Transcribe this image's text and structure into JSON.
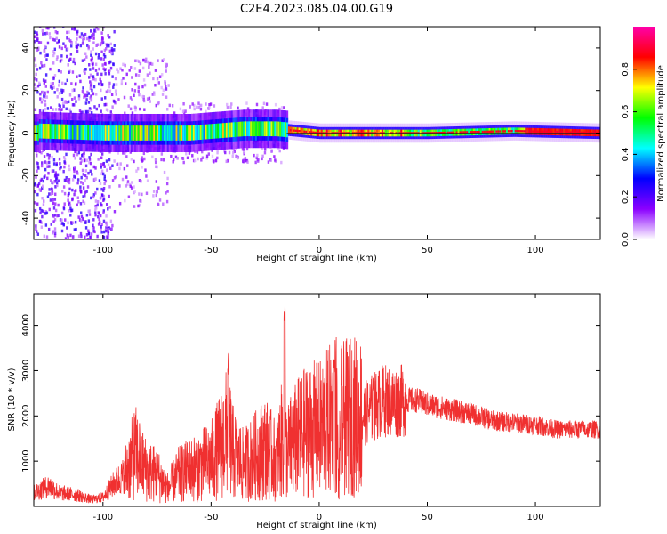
{
  "chart_data": [
    {
      "type": "heatmap",
      "title": "C2E4.2023.085.04.00.G19",
      "xlabel": "Height of straight line (km)",
      "ylabel": "Frequency (Hz)",
      "xlim": [
        -132,
        130
      ],
      "ylim": [
        -50,
        50
      ],
      "xticks": [
        -100,
        -50,
        0,
        50,
        100
      ],
      "yticks": [
        -40,
        -20,
        0,
        20,
        40
      ],
      "colorbar": {
        "label": "Normalized spectral amplitude",
        "range": [
          0.0,
          1.0
        ],
        "ticks": [
          0.0,
          0.2,
          0.4,
          0.6,
          0.8
        ],
        "tick_labels": [
          "0.0",
          "0.2",
          "0.4",
          "0.6",
          "0.8"
        ],
        "colormap": [
          "#ffffff",
          "#8b00ff",
          "#0000ff",
          "#00ffff",
          "#00ff00",
          "#ffff00",
          "#ff0000",
          "#ff00aa"
        ]
      },
      "features": {
        "band_center_hz": [
          {
            "x": -130,
            "f": 1
          },
          {
            "x": -100,
            "f": 0
          },
          {
            "x": -60,
            "f": 0
          },
          {
            "x": -35,
            "f": 2
          },
          {
            "x": -20,
            "f": 2
          },
          {
            "x": 0,
            "f": 0
          },
          {
            "x": 50,
            "f": 0
          },
          {
            "x": 90,
            "f": 1
          },
          {
            "x": 130,
            "f": 0
          }
        ]
      },
      "grid": false
    },
    {
      "type": "line",
      "xlabel": "Height of straight line (km)",
      "ylabel": "SNR (10 * v/v)",
      "xlim": [
        -132,
        130
      ],
      "ylim": [
        0,
        4700
      ],
      "xticks": [
        -100,
        -50,
        0,
        50,
        100
      ],
      "yticks": [
        1000,
        2000,
        3000,
        4000
      ],
      "color": "#f03030",
      "series": [
        {
          "x": [
            -132,
            -125,
            -120,
            -112,
            -105,
            -100,
            -95,
            -90,
            -85,
            -80,
            -75,
            -70,
            -65,
            -60,
            -55,
            -50,
            -45,
            -42,
            -40,
            -35,
            -30,
            -25,
            -20,
            -17,
            -15,
            -10,
            -5,
            0,
            5,
            8,
            9,
            10,
            15,
            20,
            25,
            30,
            35,
            40,
            45,
            50,
            60,
            70,
            80,
            90,
            100,
            110,
            120,
            130
          ],
          "y": [
            300,
            450,
            300,
            250,
            150,
            200,
            500,
            700,
            1200,
            800,
            700,
            400,
            700,
            800,
            900,
            1000,
            1400,
            1700,
            1200,
            900,
            1100,
            1300,
            1000,
            1500,
            1200,
            1500,
            1700,
            1700,
            1900,
            2100,
            400,
            1900,
            2000,
            2000,
            2200,
            2350,
            2300,
            2350,
            2350,
            2250,
            2150,
            2050,
            1900,
            1850,
            1800,
            1700,
            1700,
            1700
          ]
        }
      ],
      "spikes": [
        {
          "x": -16,
          "y": 4700
        },
        {
          "x": -42,
          "y": 3400
        },
        {
          "x": 7,
          "y": 3350
        },
        {
          "x": 25,
          "y": 2900
        }
      ],
      "grid": false
    }
  ]
}
